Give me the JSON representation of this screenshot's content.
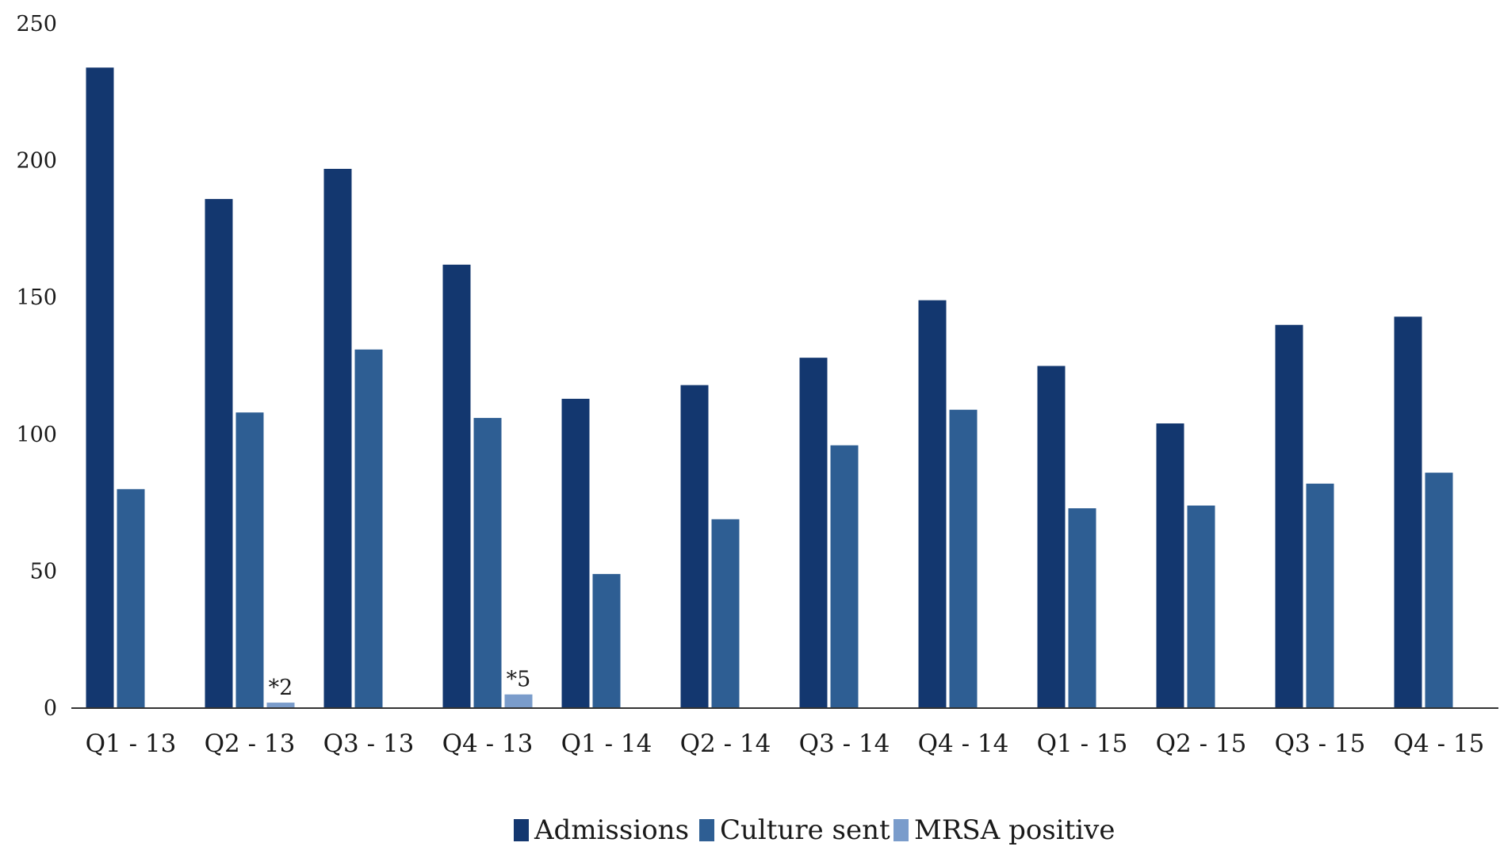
{
  "chart_data": {
    "type": "bar",
    "title": "",
    "xlabel": "",
    "ylabel": "",
    "ylim": [
      0,
      250
    ],
    "yticks": [
      0,
      50,
      100,
      150,
      200,
      250
    ],
    "grid": false,
    "legend_position": "bottom",
    "categories": [
      "Q1 - 13",
      "Q2 - 13",
      "Q3 - 13",
      "Q4 - 13",
      "Q1 - 14",
      "Q2 - 14",
      "Q3 - 14",
      "Q4 - 14",
      "Q1 - 15",
      "Q2 - 15",
      "Q3 - 15",
      "Q4 - 15"
    ],
    "series": [
      {
        "name": "Admissions",
        "color": "#13376f",
        "values": [
          234,
          186,
          197,
          162,
          113,
          118,
          128,
          149,
          125,
          104,
          140,
          143
        ]
      },
      {
        "name": "Culture sent",
        "color": "#2e5e93",
        "values": [
          80,
          108,
          131,
          106,
          49,
          69,
          96,
          109,
          73,
          74,
          82,
          86
        ]
      },
      {
        "name": "MRSA positive",
        "color": "#7a9ccb",
        "values": [
          0,
          2,
          0,
          5,
          0,
          0,
          0,
          0,
          0,
          0,
          0,
          0
        ]
      }
    ],
    "annotations": [
      {
        "category": "Q2 - 13",
        "series": "MRSA positive",
        "text": "*2"
      },
      {
        "category": "Q4 - 13",
        "series": "MRSA positive",
        "text": "*5"
      }
    ]
  }
}
